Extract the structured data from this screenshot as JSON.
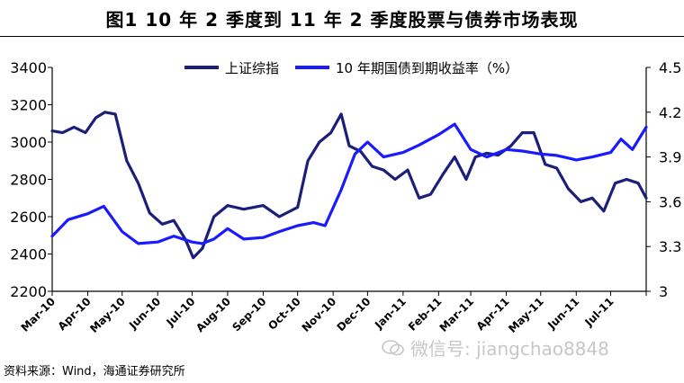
{
  "title": "图1  10 年 2 季度到 11 年 2 季度股票与债券市场表现",
  "source": "资料来源：Wind，海通证券研究所",
  "watermark": "微信号: jiangchao8848",
  "colors": {
    "stock": "#1c1f7a",
    "bond": "#1a1aff",
    "axis": "#000000"
  },
  "chart_data": {
    "type": "line",
    "legend_position": "top-center",
    "grid": false,
    "x_tick_labels": [
      "Mar-10",
      "Apr-10",
      "May-10",
      "Jun-10",
      "Jul-10",
      "Aug-10",
      "Sep-10",
      "Oct-10",
      "Nov-10",
      "Dec-10",
      "Jan-11",
      "Feb-11",
      "Mar-11",
      "Apr-11",
      "May-11",
      "Jun-11",
      "Jul-11"
    ],
    "x_range": [
      "Mar-10",
      "Aug-11"
    ],
    "y_left": {
      "ticks": [
        2200,
        2400,
        2600,
        2800,
        3000,
        3200,
        3400
      ],
      "ylim": [
        2200,
        3400
      ]
    },
    "y_right": {
      "ticks": [
        "3",
        "3.3",
        "3.6",
        "3.9",
        "4.2",
        "4.5"
      ],
      "ylim": [
        3.0,
        4.5
      ]
    },
    "series": [
      {
        "name": "上证综指",
        "axis": "left",
        "x": [
          "2010-03-01",
          "2010-03-10",
          "2010-03-20",
          "2010-03-30",
          "2010-04-08",
          "2010-04-16",
          "2010-04-25",
          "2010-05-05",
          "2010-05-15",
          "2010-05-25",
          "2010-06-05",
          "2010-06-15",
          "2010-06-25",
          "2010-07-02",
          "2010-07-10",
          "2010-07-20",
          "2010-08-01",
          "2010-08-15",
          "2010-09-01",
          "2010-09-15",
          "2010-10-01",
          "2010-10-10",
          "2010-10-20",
          "2010-10-30",
          "2010-11-08",
          "2010-11-15",
          "2010-11-25",
          "2010-12-05",
          "2010-12-15",
          "2010-12-25",
          "2011-01-05",
          "2011-01-15",
          "2011-01-25",
          "2011-02-05",
          "2011-02-15",
          "2011-02-25",
          "2011-03-05",
          "2011-03-15",
          "2011-03-25",
          "2011-04-05",
          "2011-04-15",
          "2011-04-25",
          "2011-05-05",
          "2011-05-15",
          "2011-05-25",
          "2011-06-05",
          "2011-06-15",
          "2011-06-25",
          "2011-07-05",
          "2011-07-15",
          "2011-07-25",
          "2011-08-01"
        ],
        "values": [
          3060,
          3050,
          3080,
          3050,
          3130,
          3160,
          3150,
          2900,
          2780,
          2620,
          2560,
          2580,
          2480,
          2380,
          2430,
          2600,
          2660,
          2640,
          2660,
          2600,
          2650,
          2900,
          3000,
          3050,
          3150,
          2980,
          2950,
          2870,
          2850,
          2800,
          2850,
          2700,
          2720,
          2830,
          2920,
          2800,
          2920,
          2940,
          2930,
          2980,
          3050,
          3050,
          2880,
          2860,
          2750,
          2680,
          2700,
          2630,
          2780,
          2800,
          2780,
          2700
        ]
      },
      {
        "name": "10 年期国债到期收益率（%）",
        "axis": "right",
        "x": [
          "2010-03-01",
          "2010-03-15",
          "2010-04-01",
          "2010-04-15",
          "2010-05-01",
          "2010-05-15",
          "2010-06-01",
          "2010-06-15",
          "2010-07-01",
          "2010-07-10",
          "2010-07-20",
          "2010-08-01",
          "2010-08-15",
          "2010-09-01",
          "2010-09-15",
          "2010-10-01",
          "2010-10-15",
          "2010-10-25",
          "2010-11-08",
          "2010-11-20",
          "2010-12-01",
          "2010-12-15",
          "2011-01-01",
          "2011-01-15",
          "2011-02-01",
          "2011-02-15",
          "2011-03-01",
          "2011-03-15",
          "2011-04-01",
          "2011-04-15",
          "2011-05-01",
          "2011-05-15",
          "2011-06-01",
          "2011-06-15",
          "2011-07-01",
          "2011-07-10",
          "2011-07-20",
          "2011-08-01"
        ],
        "values": [
          3.37,
          3.48,
          3.52,
          3.57,
          3.4,
          3.32,
          3.33,
          3.37,
          3.33,
          3.32,
          3.35,
          3.42,
          3.35,
          3.36,
          3.4,
          3.44,
          3.46,
          3.44,
          3.68,
          3.92,
          4.0,
          3.9,
          3.93,
          3.98,
          4.05,
          4.12,
          3.95,
          3.9,
          3.95,
          3.94,
          3.92,
          3.91,
          3.88,
          3.9,
          3.93,
          4.02,
          3.95,
          4.1
        ]
      }
    ]
  }
}
